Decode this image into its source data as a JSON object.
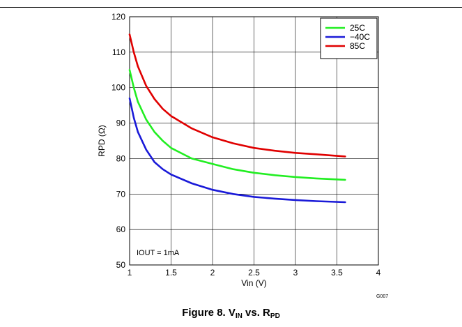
{
  "chart_data": {
    "type": "line",
    "title": "",
    "xlabel": "Vin (V)",
    "ylabel": "RPD (Ω)",
    "xlim": [
      1,
      4
    ],
    "ylim": [
      50,
      120
    ],
    "xticks": [
      1,
      1.5,
      2,
      2.5,
      3,
      3.5,
      4
    ],
    "xtick_labels": [
      "1",
      "1.5",
      "2",
      "2.5",
      "3",
      "3.5",
      "4"
    ],
    "yticks": [
      50,
      60,
      70,
      80,
      90,
      100,
      110,
      120
    ],
    "ytick_labels": [
      "50",
      "60",
      "70",
      "80",
      "90",
      "100",
      "110",
      "120"
    ],
    "grid": true,
    "legend_position": "top-right",
    "annotation": "IOUT = 1mA",
    "code": "G007",
    "series": [
      {
        "name": "25C",
        "color": "#22ee22",
        "x": [
          1.0,
          1.05,
          1.1,
          1.2,
          1.3,
          1.4,
          1.5,
          1.75,
          2.0,
          2.25,
          2.5,
          2.75,
          3.0,
          3.25,
          3.6
        ],
        "y": [
          105,
          100,
          96,
          91,
          87.5,
          85,
          83,
          80,
          78.5,
          77,
          76,
          75.3,
          74.8,
          74.4,
          74
        ]
      },
      {
        "name": "−40C",
        "color": "#1a1ad8",
        "x": [
          1.0,
          1.05,
          1.1,
          1.2,
          1.3,
          1.4,
          1.5,
          1.75,
          2.0,
          2.25,
          2.5,
          2.75,
          3.0,
          3.25,
          3.6
        ],
        "y": [
          97,
          91.5,
          87.5,
          82.5,
          79,
          77,
          75.5,
          73,
          71.2,
          70,
          69.2,
          68.7,
          68.3,
          68,
          67.7
        ]
      },
      {
        "name": "85C",
        "color": "#e00000",
        "x": [
          1.0,
          1.05,
          1.1,
          1.2,
          1.3,
          1.4,
          1.5,
          1.75,
          2.0,
          2.25,
          2.5,
          2.75,
          3.0,
          3.25,
          3.6
        ],
        "y": [
          115,
          110,
          106,
          100.5,
          96.8,
          94,
          92,
          88.5,
          86,
          84.3,
          83,
          82.2,
          81.6,
          81.2,
          80.6
        ]
      }
    ]
  },
  "caption": {
    "prefix": "Figure 8. V",
    "sub1": "IN",
    "middle": " vs. R",
    "sub2": "PD"
  }
}
